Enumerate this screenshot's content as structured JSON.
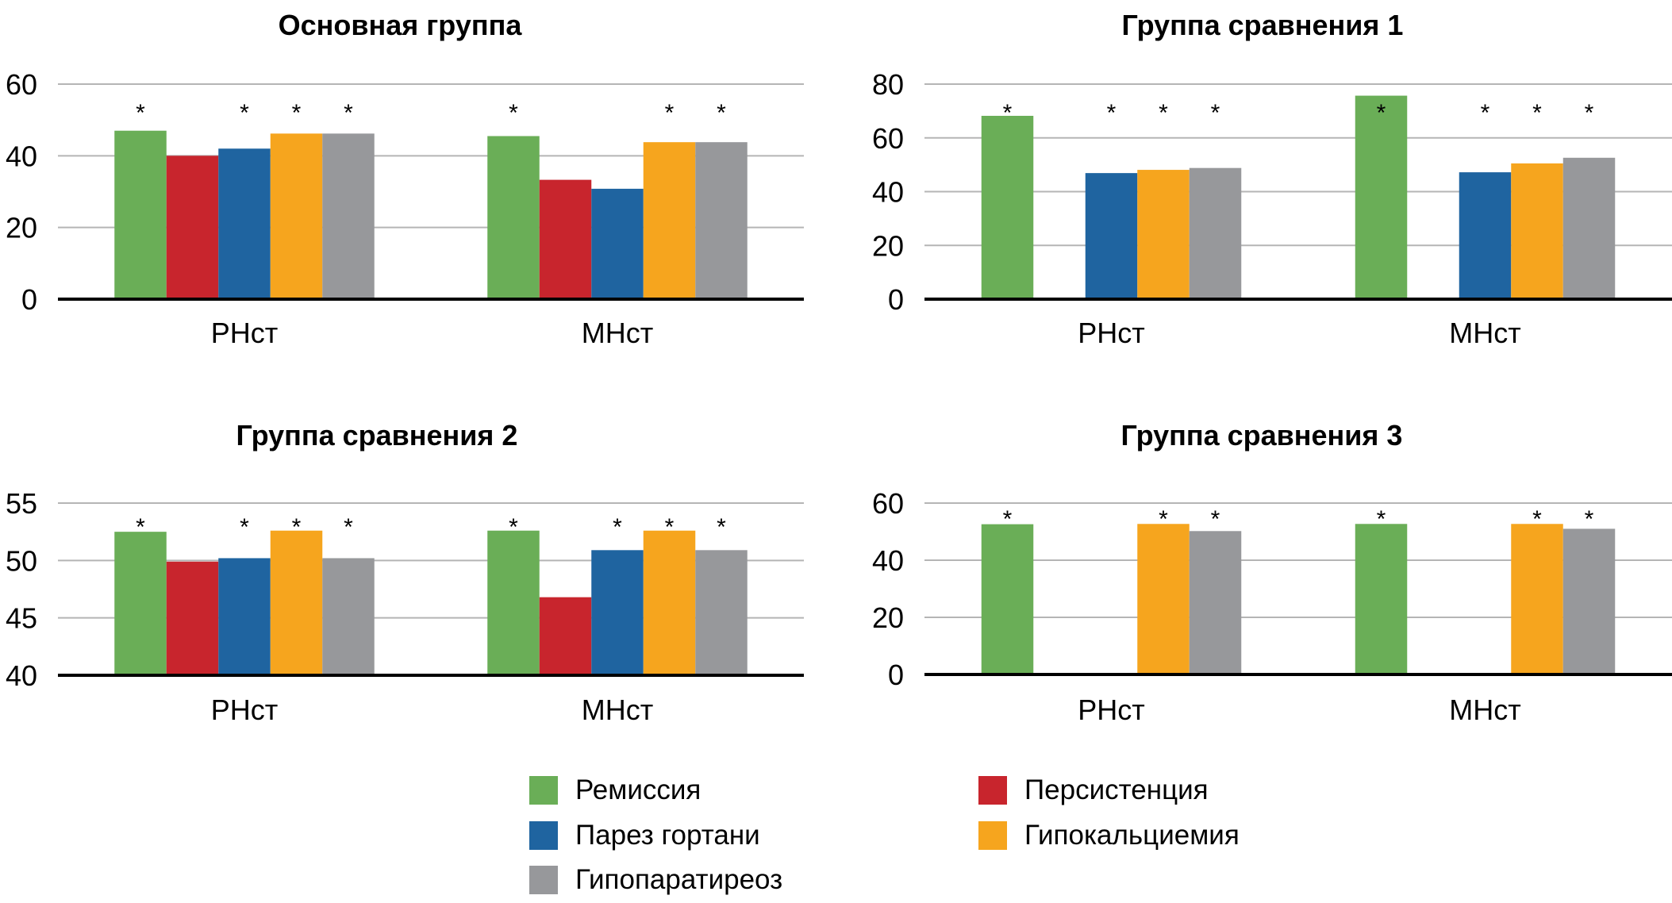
{
  "chart_data": [
    {
      "type": "bar",
      "title": "Основная группа",
      "categories": [
        "РНст",
        "МНст"
      ],
      "ylim": [
        0,
        60
      ],
      "yticks": [
        0,
        20,
        40,
        60
      ],
      "grid": true,
      "series": [
        {
          "name": "Ремиссия",
          "values": [
            47,
            45.5
          ],
          "significant": [
            true,
            true
          ]
        },
        {
          "name": "Персистенция",
          "values": [
            40,
            33.3
          ],
          "significant": [
            false,
            false
          ]
        },
        {
          "name": "Парез гортани",
          "values": [
            42,
            30.8
          ],
          "significant": [
            true,
            false
          ]
        },
        {
          "name": "Гипокальциемия",
          "values": [
            46.2,
            43.8
          ],
          "significant": [
            true,
            true
          ]
        },
        {
          "name": "Гипопаратиреоз",
          "values": [
            46.2,
            43.8
          ],
          "significant": [
            true,
            true
          ]
        }
      ],
      "annotation": "*"
    },
    {
      "type": "bar",
      "title": "Группа сравнения 1",
      "categories": [
        "РНст",
        "МНст"
      ],
      "ylim": [
        0,
        80
      ],
      "yticks": [
        0,
        20,
        40,
        60,
        80
      ],
      "grid": true,
      "series": [
        {
          "name": "Ремиссия",
          "values": [
            68.2,
            75.7
          ],
          "significant": [
            true,
            true
          ]
        },
        {
          "name": "Персистенция",
          "values": [
            0,
            0
          ],
          "significant": [
            false,
            false
          ]
        },
        {
          "name": "Парез гортани",
          "values": [
            46.9,
            47.2
          ],
          "significant": [
            true,
            true
          ]
        },
        {
          "name": "Гипокальциемия",
          "values": [
            48.1,
            50.5
          ],
          "significant": [
            true,
            true
          ]
        },
        {
          "name": "Гипопаратиреоз",
          "values": [
            48.8,
            52.6
          ],
          "significant": [
            true,
            true
          ]
        }
      ],
      "annotation": "*"
    },
    {
      "type": "bar",
      "title": "Группа сравнения 2",
      "categories": [
        "РНст",
        "МНст"
      ],
      "ylim": [
        40,
        55
      ],
      "yticks": [
        40,
        45,
        50,
        55
      ],
      "grid": true,
      "series": [
        {
          "name": "Ремиссия",
          "values": [
            52.5,
            52.6
          ],
          "significant": [
            true,
            true
          ]
        },
        {
          "name": "Персистенция",
          "values": [
            49.9,
            46.8
          ],
          "significant": [
            false,
            false
          ]
        },
        {
          "name": "Парез гортани",
          "values": [
            50.2,
            50.9
          ],
          "significant": [
            true,
            true
          ]
        },
        {
          "name": "Гипокальциемия",
          "values": [
            52.6,
            52.6
          ],
          "significant": [
            true,
            true
          ]
        },
        {
          "name": "Гипопаратиреоз",
          "values": [
            50.2,
            50.9
          ],
          "significant": [
            true,
            true
          ]
        }
      ],
      "annotation": "*"
    },
    {
      "type": "bar",
      "title": "Группа сравнения 3",
      "categories": [
        "РНст",
        "МНст"
      ],
      "ylim": [
        0,
        60
      ],
      "yticks": [
        0,
        20,
        40,
        60
      ],
      "grid": true,
      "series": [
        {
          "name": "Ремиссия",
          "values": [
            52.6,
            52.7
          ],
          "significant": [
            true,
            true
          ]
        },
        {
          "name": "Персистенция",
          "values": [
            0,
            0
          ],
          "significant": [
            false,
            false
          ]
        },
        {
          "name": "Парез гортани",
          "values": [
            0,
            0
          ],
          "significant": [
            false,
            false
          ]
        },
        {
          "name": "Гипокальциемия",
          "values": [
            52.7,
            52.7
          ],
          "significant": [
            true,
            true
          ]
        },
        {
          "name": "Гипопаратиреоз",
          "values": [
            50.2,
            51.0
          ],
          "significant": [
            true,
            true
          ]
        }
      ],
      "annotation": "*"
    }
  ],
  "legend": {
    "placement": "bottom-center",
    "items": [
      {
        "label": "Ремиссия",
        "color": "#6aae57"
      },
      {
        "label": "Персистенция",
        "color": "#c8252d"
      },
      {
        "label": "Парез гортани",
        "color": "#1f64a0"
      },
      {
        "label": "Гипокальциемия",
        "color": "#f6a51e"
      },
      {
        "label": "Гипопаратиреоз",
        "color": "#97989b"
      }
    ]
  },
  "colors": {
    "Ремиссия": "#6aae57",
    "Персистенция": "#c8252d",
    "Парез гортани": "#1f64a0",
    "Гипокальциемия": "#f6a51e",
    "Гипопаратиреоз": "#97989b",
    "grid": "#b5b5b5",
    "axis": "#000000"
  }
}
